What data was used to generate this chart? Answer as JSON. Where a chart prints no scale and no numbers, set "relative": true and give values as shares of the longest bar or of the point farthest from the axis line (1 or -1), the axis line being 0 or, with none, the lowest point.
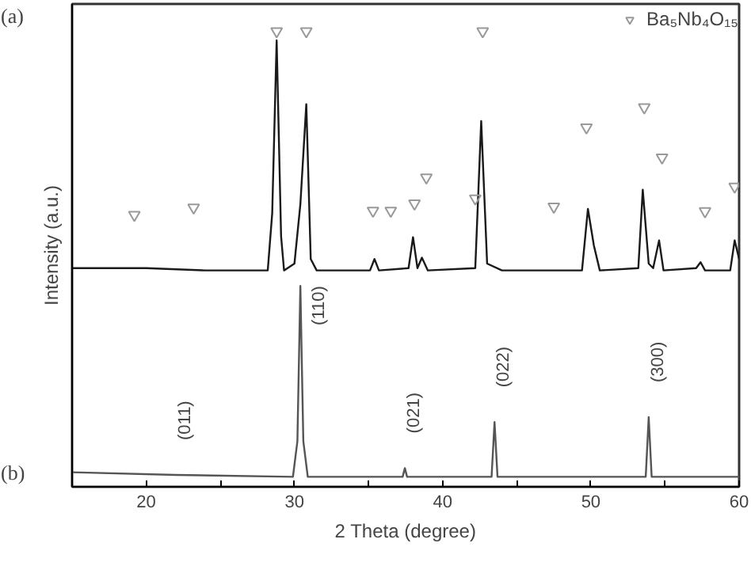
{
  "chart_data": {
    "type": "line",
    "xlabel": "2 Theta (degree)",
    "ylabel": "Intensity (a.u.)",
    "relative": true,
    "xlim": [
      15,
      60
    ],
    "xticks": [
      20,
      {
        "value": 25,
        "label": null
      },
      30,
      {
        "value": 35,
        "label": null
      },
      40,
      {
        "value": 45,
        "label": null
      },
      50,
      {
        "value": 55,
        "label": null
      },
      60
    ],
    "legend": "top right",
    "grid": false,
    "series": [
      {
        "color": "#1a1a1a",
        "x": [
          15,
          20,
          24,
          28.2,
          28.5,
          28.8,
          29.1,
          29.3,
          30.0,
          30.4,
          30.8,
          31.1,
          31.5,
          35.1,
          35.4,
          35.7,
          37.7,
          38.0,
          38.3,
          38.6,
          39.0,
          42.2,
          42.6,
          43.0,
          44,
          49.4,
          49.8,
          50.2,
          50.6,
          53.2,
          53.5,
          53.9,
          54.2,
          54.6,
          54.9,
          57.1,
          57.4,
          57.7,
          59.4,
          59.7,
          60
        ],
        "values": [
          0.48,
          0.48,
          0.475,
          0.475,
          0.6,
          0.98,
          0.55,
          0.475,
          0.49,
          0.62,
          0.84,
          0.5,
          0.475,
          0.475,
          0.5,
          0.475,
          0.48,
          0.548,
          0.48,
          0.503,
          0.475,
          0.48,
          0.803,
          0.49,
          0.475,
          0.475,
          0.61,
          0.53,
          0.475,
          0.48,
          0.652,
          0.49,
          0.48,
          0.541,
          0.475,
          0.48,
          0.493,
          0.475,
          0.475,
          0.541,
          0.5
        ]
      },
      {
        "color": "#555555",
        "x": [
          15,
          22,
          29.9,
          30.2,
          30.4,
          30.6,
          30.9,
          37.3,
          37.45,
          37.6,
          43.3,
          43.5,
          43.7,
          53.7,
          53.9,
          54.1,
          60
        ],
        "values": [
          0.032,
          0.026,
          0.022,
          0.1,
          0.441,
          0.1,
          0.022,
          0.022,
          0.041,
          0.022,
          0.022,
          0.142,
          0.022,
          0.022,
          0.153,
          0.022,
          0.022
        ]
      },
      {
        "type": "scatter",
        "name": "Ba₅Nb₄O₁₅",
        "marker": "triangle",
        "color": "#999999",
        "x": [
          19.2,
          23.2,
          28.8,
          30.8,
          35.3,
          36.5,
          38.1,
          38.9,
          42.2,
          42.7,
          47.5,
          49.7,
          53.6,
          54.8,
          57.7,
          59.7
        ],
        "values": [
          0.597,
          0.613,
          1.0,
          1.0,
          0.606,
          0.606,
          0.622,
          0.679,
          0.633,
          1.0,
          0.615,
          0.789,
          0.833,
          0.723,
          0.605,
          0.659
        ]
      }
    ],
    "annotations": [
      "(a)",
      "(b)",
      {
        "text": "(011)",
        "x": 22,
        "y": 0.026
      },
      {
        "text": "(110)",
        "x": 30.4,
        "y": 0.441
      },
      {
        "text": "(021)",
        "x": 37.45,
        "y": 0.041
      },
      {
        "text": "(022)",
        "x": 43.5,
        "y": 0.142
      },
      {
        "text": "(300)",
        "x": 53.9,
        "y": 0.153
      }
    ]
  }
}
